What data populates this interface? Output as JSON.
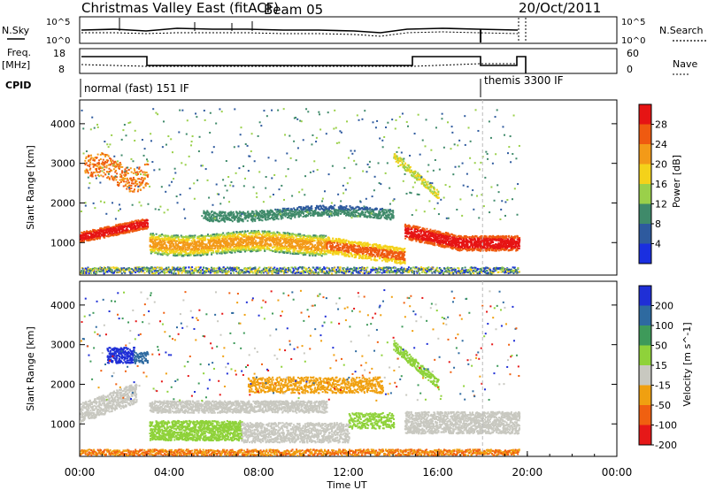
{
  "header": {
    "title": "Christmas Valley East (fitACF)",
    "beam": "Beam 05",
    "date": "20/Oct/2011"
  },
  "summary": {
    "nsky_label": "N.Sky",
    "nsearch_label": "N.Search",
    "freq_label": "Freq.",
    "freq_unit": "[MHz]",
    "nave_label": "Nave",
    "cpid_label": "CPID",
    "log_tick_hi": "10^5",
    "log_tick_lo": "10^0",
    "freq_ticks": [
      "18",
      "8"
    ],
    "nave_ticks": [
      "60",
      "0"
    ],
    "cpid_programs": [
      "normal (fast) 151 IF",
      "themis 3300 IF"
    ]
  },
  "chart_data": [
    {
      "type": "heatmap",
      "name": "power-panel",
      "ylabel": "Slant Range [km]",
      "xlabel": "",
      "xlim": [
        "00:00",
        "24:00"
      ],
      "ylim": [
        180,
        4600
      ],
      "yticks": [
        1000,
        2000,
        3000,
        4000
      ],
      "colorbar": {
        "label": "Power [dB]",
        "ticks": [
          4,
          8,
          12,
          16,
          20,
          24,
          28
        ],
        "colors": [
          "#1a2fe0",
          "#2e5a9e",
          "#3f8a6a",
          "#9ad04a",
          "#f4d21a",
          "#f39a18",
          "#ef5a10",
          "#e61414"
        ]
      },
      "legend_position": "right"
    },
    {
      "type": "heatmap",
      "name": "velocity-panel",
      "ylabel": "Slant Range [km]",
      "xlabel": "Time UT",
      "xlim": [
        "00:00",
        "24:00"
      ],
      "ylim": [
        180,
        4600
      ],
      "yticks": [
        1000,
        2000,
        3000,
        4000
      ],
      "xticks": [
        "00:00",
        "04:00",
        "08:00",
        "12:00",
        "16:00",
        "20:00",
        "00:00"
      ],
      "colorbar": {
        "label": "Velocity [m s^-1]",
        "ticks": [
          200,
          100,
          50,
          15,
          -15,
          -50,
          -100,
          -200
        ],
        "colors": [
          "#1f2fd6",
          "#2e6aa0",
          "#3e9a5a",
          "#8fd23a",
          "#c8c8c0",
          "#f0a010",
          "#f06010",
          "#e61818"
        ]
      },
      "legend_position": "right"
    }
  ],
  "colors": {
    "axis": "#000000",
    "grid_bg": "#ffffff",
    "gray_scatter": "#c8c8c0"
  }
}
